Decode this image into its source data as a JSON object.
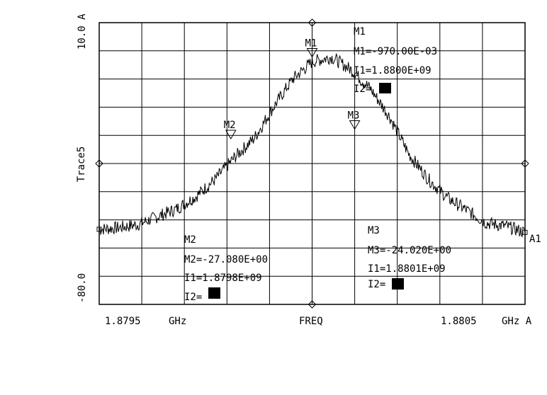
{
  "chart_data": {
    "type": "line",
    "ylabel": "Trace5",
    "xlabel": "FREQ",
    "x_unit_label": "GHz A",
    "y_top_label": "10.0 A",
    "y_bottom_label": "-80.0",
    "ylim": [
      -80.0,
      10.0
    ],
    "xlim": [
      1.87945,
      1.88055
    ],
    "x_tick_labels": [
      "1.8795",
      "GHz",
      "FREQ",
      "1.8805",
      "GHz A"
    ],
    "trace_label": "A1",
    "grid": true,
    "series": [
      {
        "x": [
          1.87945,
          1.8795,
          1.87955,
          1.8796,
          1.87965,
          1.8797,
          1.87975,
          1.8798,
          1.87985,
          1.8799,
          1.87995,
          1.88,
          1.88005,
          1.8801,
          1.88015,
          1.8802,
          1.88025,
          1.8803,
          1.88035,
          1.8804,
          1.88045,
          1.8805,
          1.88055
        ],
        "y": [
          -56,
          -55.5,
          -54.5,
          -52,
          -49.5,
          -45.5,
          -40,
          -33,
          -27,
          -17,
          -8,
          -2.5,
          -1,
          -5,
          -11,
          -20,
          -32,
          -40,
          -46,
          -50,
          -54,
          -55,
          -57
        ]
      }
    ],
    "markers": [
      {
        "id": "M1",
        "x": 1.88,
        "y": -0.97,
        "header": "M1",
        "value_text": "M1=-970.00E-03",
        "i1_text": "I1=1.8800E+09",
        "i2_text": "I2="
      },
      {
        "id": "M2",
        "x": 1.87979,
        "y": -27.08,
        "header": "M2",
        "value_text": "M2=-27.080E+00",
        "i1_text": "I1=1.8798E+09",
        "i2_text": "I2="
      },
      {
        "id": "M3",
        "x": 1.88011,
        "y": -24.02,
        "header": "M3",
        "value_text": "M3=-24.020E+00",
        "i1_text": "I1=1.8801E+09",
        "i2_text": "I2="
      }
    ]
  }
}
